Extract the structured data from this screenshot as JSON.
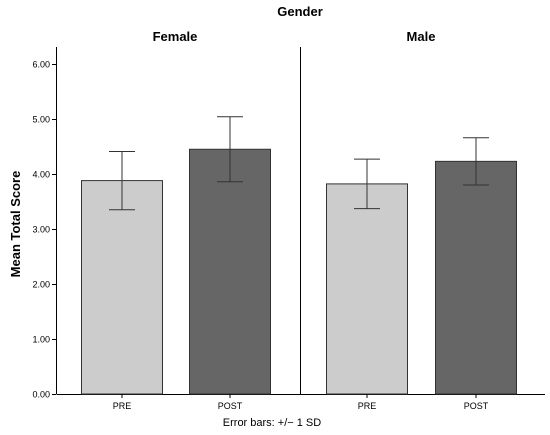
{
  "chart_data": {
    "type": "bar",
    "title": "Gender",
    "ylabel": "Mean Total Score",
    "ylim": [
      0,
      6.5
    ],
    "yticks": [
      "0.00",
      "1.00",
      "2.00",
      "3.00",
      "4.00",
      "5.00",
      "6.00"
    ],
    "categories": [
      "PRE",
      "POST"
    ],
    "footnote": "Error bars: +/− 1 SD",
    "colors": {
      "PRE": "#cccccc",
      "POST": "#666666"
    },
    "panels": [
      {
        "label": "Female",
        "means": [
          3.88,
          4.45
        ],
        "sd": [
          0.53,
          0.59
        ]
      },
      {
        "label": "Male",
        "means": [
          3.82,
          4.23
        ],
        "sd": [
          0.45,
          0.43
        ]
      }
    ]
  }
}
